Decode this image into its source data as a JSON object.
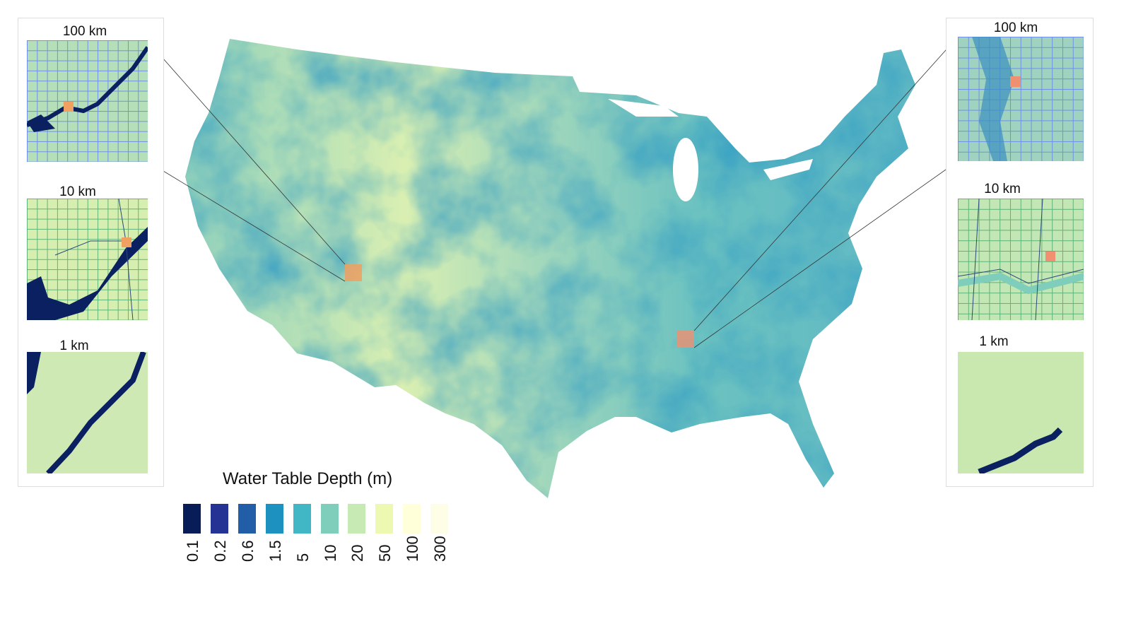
{
  "legend": {
    "title": "Water Table Depth (m)",
    "classes": [
      {
        "label": "0.1",
        "color": "#081d58"
      },
      {
        "label": "0.2",
        "color": "#253494"
      },
      {
        "label": "0.6",
        "color": "#225ea8"
      },
      {
        "label": "1.5",
        "color": "#1d91c0"
      },
      {
        "label": "5",
        "color": "#41b6c4"
      },
      {
        "label": "10",
        "color": "#7fcdbb"
      },
      {
        "label": "20",
        "color": "#c7e9b4"
      },
      {
        "label": "50",
        "color": "#edf8b1"
      },
      {
        "label": "100",
        "color": "#ffffd9"
      },
      {
        "label": "300",
        "color": "#fefee6"
      }
    ]
  },
  "left_insets": {
    "scale_100": "100 km",
    "scale_10": "10 km",
    "scale_1": "1 km"
  },
  "right_insets": {
    "scale_100": "100 km",
    "scale_10": "10 km",
    "scale_1": "1 km"
  },
  "highlight_color": "#f0a060"
}
